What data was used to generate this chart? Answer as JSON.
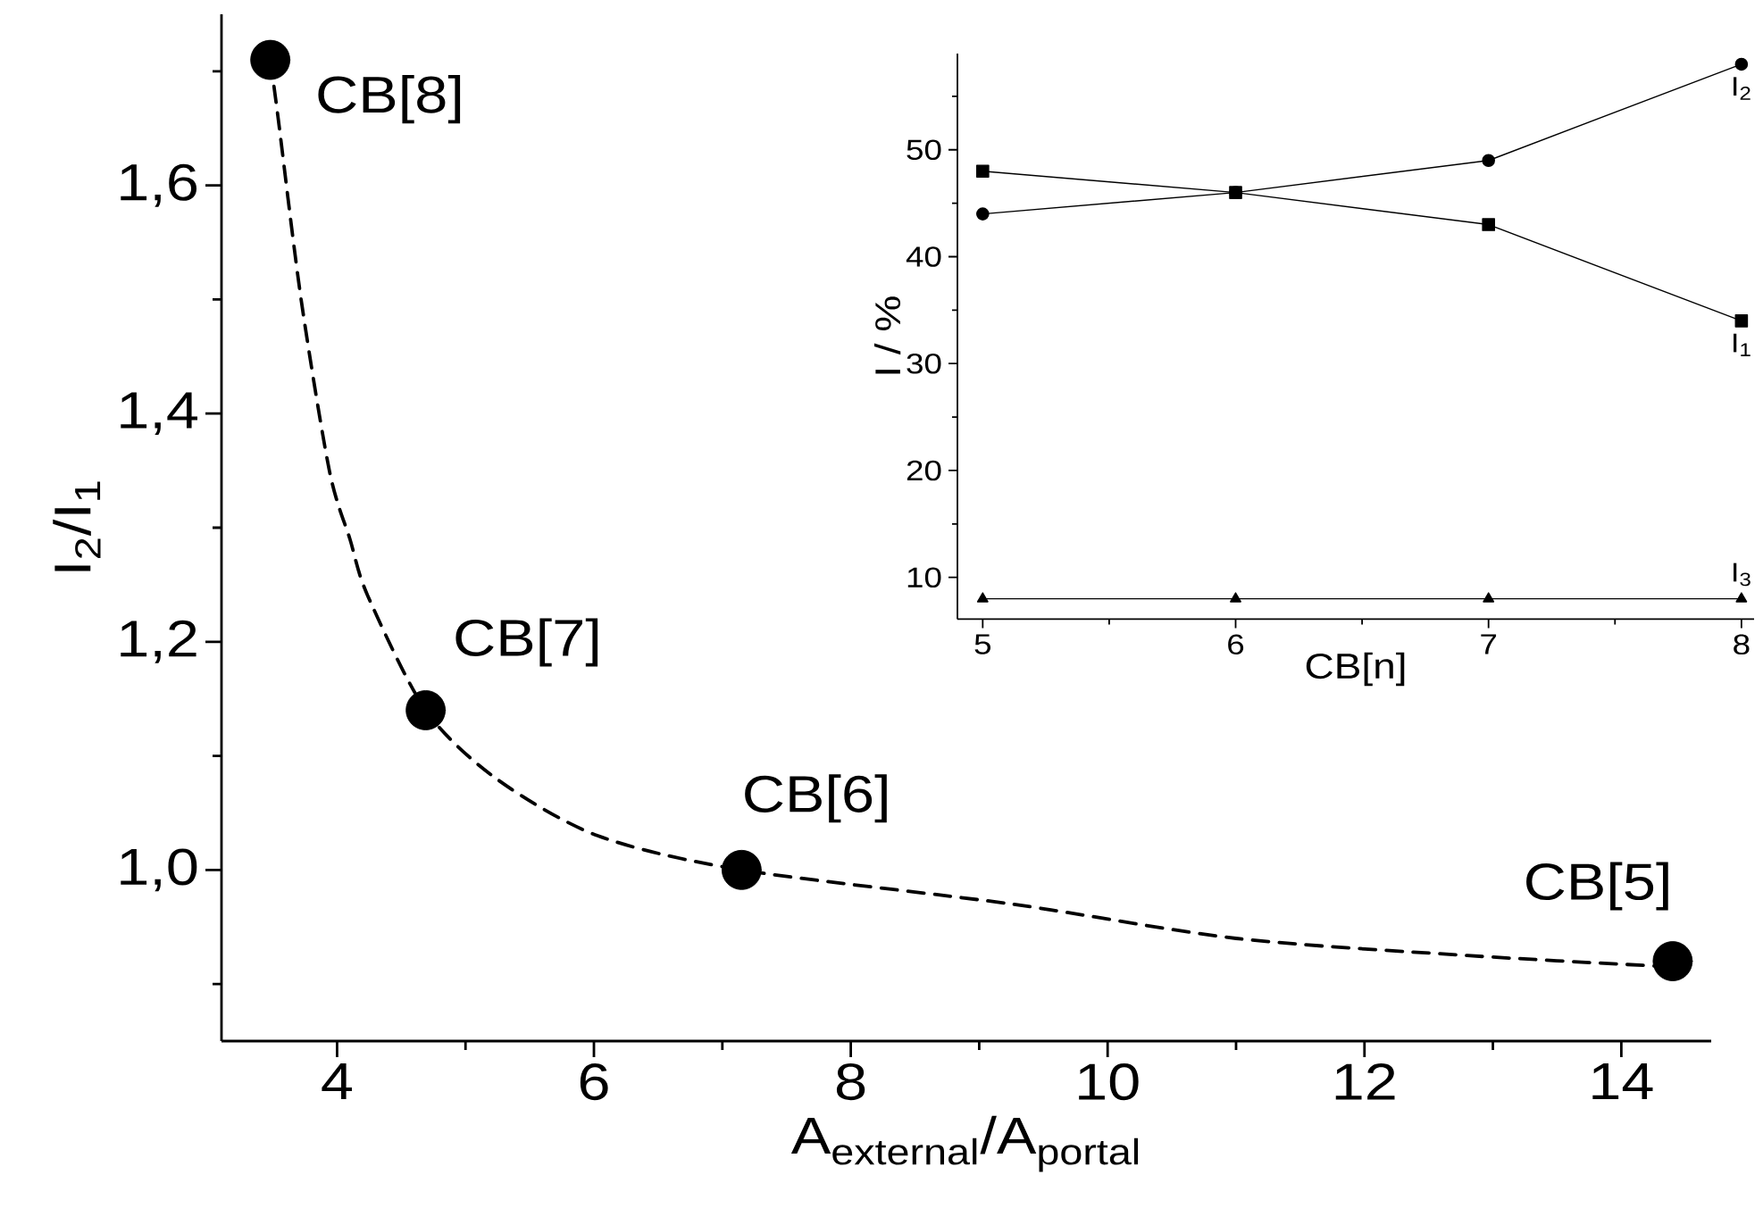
{
  "chart_data": [
    {
      "type": "scatter",
      "xlabel": "A$_{external}$/A$_{portal}$",
      "ylabel": "I$_{2}$/I$_{1}$",
      "xlim": [
        3.1,
        14.7
      ],
      "ylim": [
        0.85,
        1.75
      ],
      "xticks": [
        4,
        {
          "value": 5,
          "label": null
        },
        6,
        {
          "value": 7,
          "label": null
        },
        8,
        {
          "value": 9,
          "label": null
        },
        10,
        {
          "value": 11,
          "label": null
        },
        12,
        {
          "value": 13,
          "label": null
        },
        14
      ],
      "yticks": [
        {
          "value": 0.9,
          "label": null
        },
        {
          "value": 1.0,
          "label": "1,0"
        },
        {
          "value": 1.1,
          "label": null
        },
        {
          "value": 1.2,
          "label": "1,2"
        },
        {
          "value": 1.3,
          "label": null
        },
        {
          "value": 1.4,
          "label": "1,4"
        },
        {
          "value": 1.5,
          "label": null
        },
        {
          "value": 1.6,
          "label": "1,6"
        },
        {
          "value": 1.7,
          "label": null
        }
      ],
      "series": [
        {
          "type": "scatter",
          "color": "#000000",
          "marker": "circle",
          "x": [
            3.48,
            4.69,
            7.15,
            14.4
          ],
          "values": [
            1.71,
            1.14,
            1.0,
            0.92
          ]
        },
        {
          "type": "line",
          "color": "#000000",
          "marker": "none",
          "line_style": "dashed",
          "x": [
            3.48,
            3.54,
            3.72,
            3.94,
            4.1,
            4.24,
            4.69,
            5.24,
            6.03,
            7.15,
            9.26,
            11.0,
            12.8,
            14.4
          ],
          "values": [
            1.71,
            1.66,
            1.5,
            1.35,
            1.29,
            1.24,
            1.14,
            1.08,
            1.03,
            1.0,
            0.97,
            0.94,
            0.925,
            0.915
          ]
        }
      ],
      "annotations": [
        {
          "text": "CB[8]",
          "x": 3.48,
          "y": 1.71
        },
        {
          "text": "CB[7]",
          "x": 4.69,
          "y": 1.14
        },
        {
          "text": "CB[6]",
          "x": 7.15,
          "y": 1.0
        },
        {
          "text": "CB[5]",
          "x": 14.4,
          "y": 0.92
        }
      ]
    },
    {
      "type": "line",
      "xlabel": "CB[n]",
      "ylabel": "I / %",
      "xlim": [
        4.9,
        8.05
      ],
      "ylim": [
        6.1,
        59
      ],
      "xticks": [
        5,
        {
          "value": 5.5,
          "label": null
        },
        6,
        {
          "value": 6.5,
          "label": null
        },
        7,
        {
          "value": 7.5,
          "label": null
        },
        8
      ],
      "yticks": [
        10,
        {
          "value": 15,
          "label": null
        },
        20,
        {
          "value": 25,
          "label": null
        },
        30,
        {
          "value": 35,
          "label": null
        },
        40,
        {
          "value": 45,
          "label": null
        },
        50,
        {
          "value": 55,
          "label": null
        }
      ],
      "x": [
        5,
        6,
        7,
        8
      ],
      "series": [
        {
          "name": "I$_{1}$",
          "color": "#000000",
          "marker": "square",
          "line_style": "solid",
          "values": [
            48,
            46,
            43,
            34
          ]
        },
        {
          "name": "I$_{2}$",
          "color": "#000000",
          "marker": "circle",
          "line_style": "solid",
          "values": [
            44,
            46,
            49,
            58
          ]
        },
        {
          "name": "I$_{3}$",
          "color": "#000000",
          "marker": "triangle",
          "line_style": "solid",
          "values": [
            8,
            8,
            8,
            8
          ]
        }
      ]
    }
  ]
}
